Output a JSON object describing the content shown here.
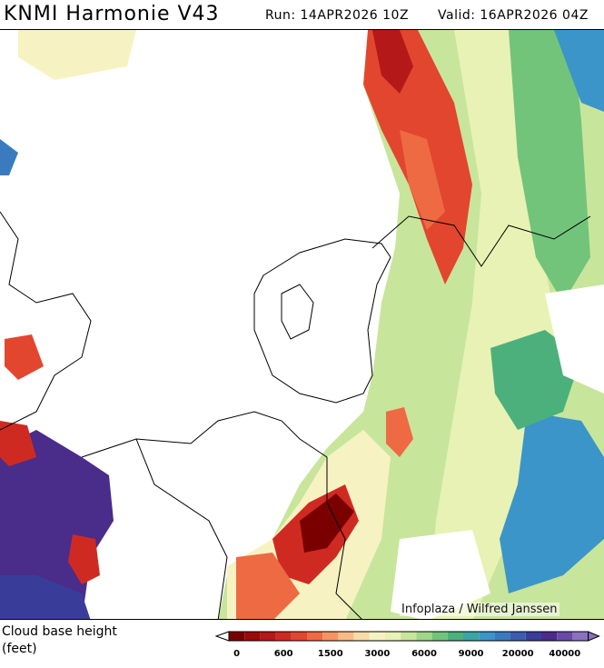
{
  "header": {
    "title": "KNMI Harmonie V43",
    "run": "Run: 14APR2026 10Z",
    "valid": "Valid: 16APR2026 04Z"
  },
  "credit": "Infoplaza / Wilfred Janssen",
  "legend": {
    "title_line1": "Cloud base height",
    "title_line2": "(feet)",
    "colors": [
      "#7a0000",
      "#9a0a0a",
      "#b51818",
      "#cf2a22",
      "#e2462e",
      "#ee6a43",
      "#f59462",
      "#f8bb86",
      "#f8dca8",
      "#f7f2c2",
      "#e8f2b4",
      "#c8e59c",
      "#9fd68a",
      "#72c47a",
      "#4cb07c",
      "#3aa6a4",
      "#3b95c8",
      "#3a7bc0",
      "#3a5db0",
      "#3a3c9a",
      "#4a2c8a",
      "#6a4aa8",
      "#8a72c0"
    ],
    "tick_labels": [
      "0",
      "600",
      "1500",
      "3000",
      "6000",
      "9000",
      "20000",
      "40000"
    ]
  }
}
